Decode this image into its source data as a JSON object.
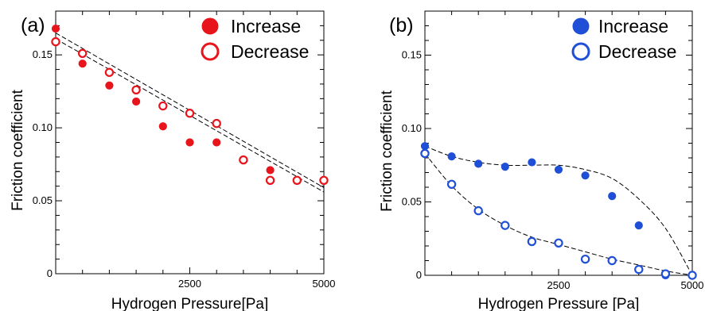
{
  "chart_data": [
    {
      "panel_label": "(a)",
      "type": "scatter",
      "xlabel": "Hydrogen Pressure[Pa]",
      "ylabel": "Friction coefficient",
      "xlim": [
        0,
        5000
      ],
      "ylim": [
        0,
        0.18
      ],
      "x_ticks": [
        0,
        2500,
        5000
      ],
      "x_tick_labels": [
        "",
        "2500",
        "5000"
      ],
      "y_ticks": [
        0,
        0.05,
        0.1,
        0.15
      ],
      "y_tick_labels": [
        "0",
        "0.05",
        "0.10",
        "0.15"
      ],
      "grid": false,
      "legend_position": "top-right",
      "color": "#e8141b",
      "series": [
        {
          "name": "Increase",
          "marker": "filled-circle",
          "x": [
            0,
            500,
            1000,
            1500,
            2000,
            2500,
            3000,
            3500,
            4000,
            4500,
            5000
          ],
          "y": [
            0.168,
            0.144,
            0.129,
            0.118,
            0.101,
            0.09,
            0.09,
            0.078,
            0.071,
            0.064,
            0.064
          ]
        },
        {
          "name": "Decrease",
          "marker": "open-circle",
          "x": [
            0,
            500,
            1000,
            1500,
            2000,
            2500,
            3000,
            3500,
            4000,
            4500,
            5000
          ],
          "y": [
            0.159,
            0.151,
            0.138,
            0.126,
            0.115,
            0.11,
            0.103,
            0.078,
            0.064,
            0.064,
            0.064
          ]
        }
      ],
      "fit_lines": [
        {
          "x": [
            0,
            5000
          ],
          "y": [
            0.165,
            0.059
          ]
        },
        {
          "x": [
            0,
            5000
          ],
          "y": [
            0.161,
            0.056
          ]
        }
      ]
    },
    {
      "panel_label": "(b)",
      "type": "scatter",
      "xlabel": "Hydrogen Pressure [Pa]",
      "ylabel": "Friction coefficient",
      "xlim": [
        0,
        5000
      ],
      "ylim": [
        0,
        0.18
      ],
      "x_ticks": [
        0,
        2500,
        5000
      ],
      "x_tick_labels": [
        "",
        "2500",
        "5000"
      ],
      "y_ticks": [
        0,
        0.05,
        0.1,
        0.15
      ],
      "y_tick_labels": [
        "0",
        "0.05",
        "0.10",
        "0.15"
      ],
      "grid": false,
      "legend_position": "top-right",
      "color": "#1f4fd6",
      "series": [
        {
          "name": "Increase",
          "marker": "filled-circle",
          "x": [
            0,
            500,
            1000,
            1500,
            2000,
            2500,
            3000,
            3500,
            4000,
            4500
          ],
          "y": [
            0.088,
            0.081,
            0.076,
            0.074,
            0.077,
            0.072,
            0.068,
            0.054,
            0.034,
            0.0
          ]
        },
        {
          "name": "Decrease",
          "marker": "open-circle",
          "x": [
            0,
            500,
            1000,
            1500,
            2000,
            2500,
            3000,
            3500,
            4000,
            4500,
            5000
          ],
          "y": [
            0.083,
            0.062,
            0.044,
            0.034,
            0.023,
            0.022,
            0.011,
            0.01,
            0.004,
            0.001,
            0.0
          ]
        }
      ],
      "curves": [
        {
          "x": [
            0,
            500,
            1000,
            1500,
            2000,
            2500,
            3000,
            3500,
            4000,
            4500,
            5000
          ],
          "y": [
            0.088,
            0.081,
            0.077,
            0.075,
            0.075,
            0.075,
            0.072,
            0.066,
            0.052,
            0.032,
            0.0
          ]
        },
        {
          "x": [
            0,
            500,
            1000,
            1500,
            2000,
            2500,
            3000,
            3500,
            4000,
            4500,
            5000
          ],
          "y": [
            0.083,
            0.061,
            0.045,
            0.034,
            0.026,
            0.021,
            0.016,
            0.011,
            0.007,
            0.003,
            0.0
          ]
        }
      ]
    }
  ]
}
